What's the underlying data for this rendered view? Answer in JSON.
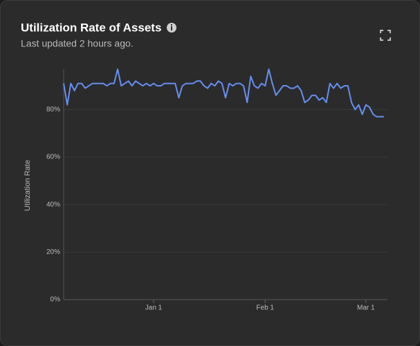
{
  "chart_data": {
    "type": "line",
    "title": "Utilization Rate of Assets",
    "subtitle": "Last updated 2 hours ago.",
    "y_label": "Utilization Rate",
    "color": "#6690f2",
    "x": [
      "Dec 7",
      "Dec 8",
      "Dec 9",
      "Dec 10",
      "Dec 11",
      "Dec 12",
      "Dec 13",
      "Dec 14",
      "Dec 15",
      "Dec 16",
      "Dec 17",
      "Dec 18",
      "Dec 19",
      "Dec 20",
      "Dec 21",
      "Dec 22",
      "Dec 23",
      "Dec 24",
      "Dec 25",
      "Dec 26",
      "Dec 27",
      "Dec 28",
      "Dec 29",
      "Dec 30",
      "Dec 31",
      "Jan 1",
      "Jan 2",
      "Jan 3",
      "Jan 4",
      "Jan 5",
      "Jan 6",
      "Jan 7",
      "Jan 8",
      "Jan 9",
      "Jan 10",
      "Jan 11",
      "Jan 12",
      "Jan 13",
      "Jan 14",
      "Jan 15",
      "Jan 16",
      "Jan 17",
      "Jan 18",
      "Jan 19",
      "Jan 20",
      "Jan 21",
      "Jan 22",
      "Jan 23",
      "Jan 24",
      "Jan 25",
      "Jan 26",
      "Jan 27",
      "Jan 28",
      "Jan 29",
      "Jan 30",
      "Jan 31",
      "Feb 1",
      "Feb 2",
      "Feb 3",
      "Feb 4",
      "Feb 5",
      "Feb 6",
      "Feb 7",
      "Feb 8",
      "Feb 9",
      "Feb 10",
      "Feb 11",
      "Feb 12",
      "Feb 13",
      "Feb 14",
      "Feb 15",
      "Feb 16",
      "Feb 17",
      "Feb 18",
      "Feb 19",
      "Feb 20",
      "Feb 21",
      "Feb 22",
      "Feb 23",
      "Feb 24",
      "Feb 25",
      "Feb 26",
      "Feb 27",
      "Feb 28",
      "Mar 1",
      "Mar 2",
      "Mar 3",
      "Mar 4",
      "Mar 5",
      "Mar 6"
    ],
    "values": [
      91,
      82,
      91,
      88,
      91,
      91,
      89,
      90,
      91,
      91,
      91,
      91,
      90,
      91,
      91,
      97,
      90,
      91,
      92,
      90,
      92,
      91,
      90,
      91,
      90,
      91,
      90,
      90,
      91,
      91,
      91,
      91,
      85,
      90,
      91,
      91,
      91,
      92,
      92,
      90,
      89,
      91,
      90,
      92,
      91,
      85,
      91,
      90,
      91,
      91,
      90,
      83,
      94,
      90,
      89,
      91,
      90,
      97,
      91,
      86,
      88,
      90,
      90,
      89,
      89,
      90,
      88,
      83,
      84,
      86,
      86,
      84,
      85,
      83,
      91,
      89,
      91,
      89,
      90,
      90,
      83,
      80,
      82,
      78,
      82,
      81,
      78,
      77,
      77,
      77
    ],
    "xticks": [
      "Jan 1",
      "Feb 1",
      "Mar 1"
    ],
    "ylim": [
      0,
      97
    ],
    "yticks": [
      {
        "value": 0,
        "label": "0%"
      },
      {
        "value": 20,
        "label": "20%"
      },
      {
        "value": 40,
        "label": "40%"
      },
      {
        "value": 60,
        "label": "60%"
      },
      {
        "value": 80,
        "label": "80%"
      }
    ],
    "grid": true
  }
}
